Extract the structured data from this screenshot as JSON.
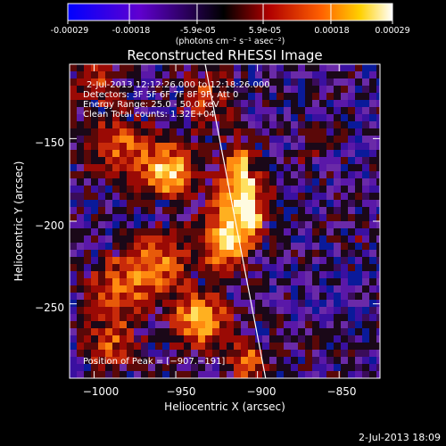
{
  "colorbar": {
    "tick_labels": [
      "-0.00029",
      "-0.00018",
      "-5.9e-05",
      "5.9e-05",
      "0.00018",
      "0.00029"
    ],
    "tick_values": [
      -0.00029,
      -0.00018,
      -5.9e-05,
      5.9e-05,
      0.00018,
      0.00029
    ],
    "range": [
      -0.00029,
      0.00029
    ],
    "unit_label": "(photons cm⁻² s⁻¹ asec⁻²)",
    "colors": [
      "#0000ff",
      "#6a00e0",
      "#000000",
      "#a00000",
      "#ff6000",
      "#ffd000",
      "#ffffff"
    ]
  },
  "plot": {
    "title": "Reconstructed RHESSI Image",
    "xlabel": "Heliocentric X (arcsec)",
    "ylabel": "Heliocentric Y (arcsec)",
    "xlim": [
      -1015,
      -825
    ],
    "ylim": [
      -295,
      -105
    ],
    "x_ticks": [
      -1000,
      -950,
      -900,
      -850
    ],
    "x_tick_labels": [
      "−1000",
      "−950",
      "−900",
      "−850"
    ],
    "y_ticks": [
      -150,
      -200,
      -250
    ],
    "y_tick_labels": [
      "−150",
      "−200",
      "−250"
    ]
  },
  "annotations": {
    "time_range": "2-Jul-2013 12:12:26.000 to 12:18:26.000",
    "detectors": "Detectors: 3F 5F 6F 7F 8F 9F, Att 0",
    "energy": "Energy Range: 25.0 - 50.0 keV",
    "clean": "Clean    Total counts: 1.32E+04",
    "peak": "Position of Peak = [−907.−191]"
  },
  "footer": {
    "timestamp": "2-Jul-2013 18:09"
  },
  "chart_data": {
    "type": "heatmap",
    "peak": [
      -907,
      -191
    ],
    "limb_line": [
      [
        -932,
        -105
      ],
      [
        -895,
        -295
      ]
    ]
  }
}
